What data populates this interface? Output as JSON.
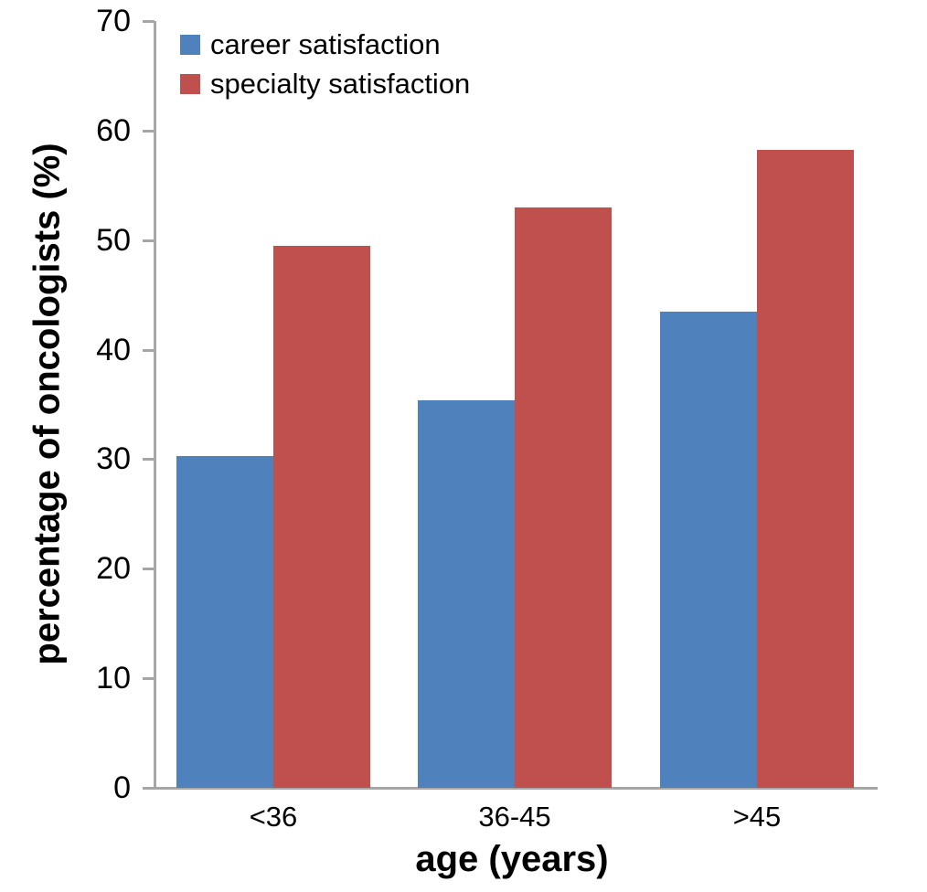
{
  "chart_data": {
    "type": "bar",
    "title": "",
    "categories": [
      "<36",
      "36-45",
      ">45"
    ],
    "series": [
      {
        "name": "career satisfaction",
        "color": "#4f81bd",
        "values": [
          30.3,
          35.4,
          43.5
        ]
      },
      {
        "name": "specialty satisfaction",
        "color": "#c0504d",
        "values": [
          49.5,
          53.0,
          58.2
        ]
      }
    ],
    "xlabel": "age (years)",
    "ylabel": "percentage of oncologists (%)",
    "ylim": [
      0,
      70
    ],
    "yticks": [
      0,
      10,
      20,
      30,
      40,
      50,
      60,
      70
    ],
    "grid": false,
    "legend_position": "top-left",
    "axis_color": "#a6a6a6",
    "text_color": "#000000",
    "background_color": "#ffffff"
  }
}
